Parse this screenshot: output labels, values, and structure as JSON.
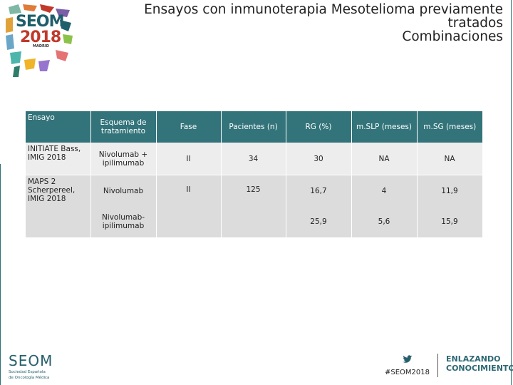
{
  "logo": {
    "line1": "SEOM",
    "line2": "2018",
    "city": "MADRID"
  },
  "title": {
    "line1": "Ensayos con inmunoterapia  Mesotelioma previamente tratados",
    "line2": "Combinaciones"
  },
  "table": {
    "headers": {
      "ensayo": "Ensayo",
      "esquema": "Esquema de tratamiento",
      "fase": "Fase",
      "pacientes": "Pacientes (n)",
      "rg": "RG (%)",
      "mslp": "m.SLP (meses)",
      "msg": "m.SG (meses)"
    },
    "rows": [
      {
        "ensayo": "INITIATE Bass, IMIG 2018",
        "esquema": "Nivolumab + ipilimumab",
        "fase": "II",
        "pacientes": "34",
        "rg": "30",
        "mslp": "NA",
        "msg": "NA"
      },
      {
        "ensayo": "MAPS 2 Scherpereel, IMIG 2018",
        "esquema": "Nivolumab",
        "fase": "II",
        "pacientes": "125",
        "rg": "16,7",
        "mslp": "4",
        "msg": "11,9"
      },
      {
        "ensayo": "",
        "esquema": "Nivolumab-ipilimumab",
        "fase": "",
        "pacientes": "",
        "rg": "25,9",
        "mslp": "5,6",
        "msg": "15,9"
      }
    ]
  },
  "footer": {
    "logo": "SEOM",
    "logo_sub1": "Sociedad Española",
    "logo_sub2": "de Oncología Médica",
    "hashtag": "#SEOM2018",
    "slogan1": "ENLAZANDO",
    "slogan2": "CONOCIMIENTO"
  },
  "colors": {
    "header_bg": "#33737a",
    "brand_teal": "#27606c",
    "brand_red": "#c0392b"
  }
}
